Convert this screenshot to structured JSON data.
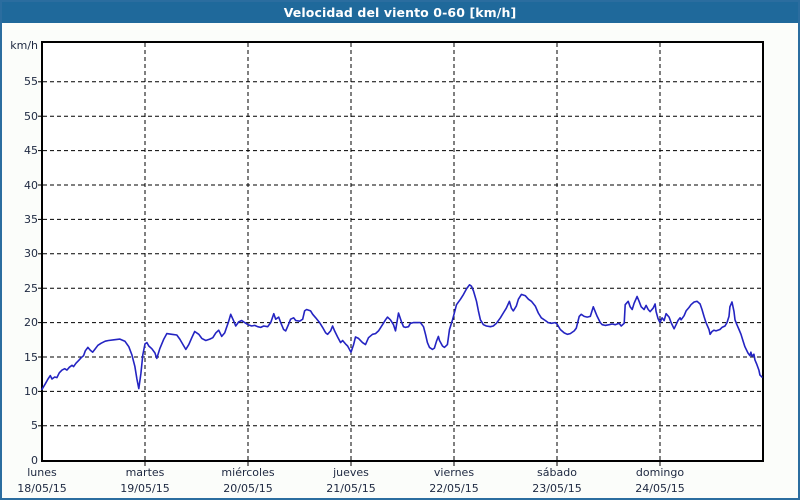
{
  "window": {
    "title": "Velocidad del viento 0-60 [km/h]"
  },
  "colors": {
    "titlebar_bg": "#1f699b",
    "titlebar_text": "#ffffff",
    "frame_border": "#2b6d9f",
    "page_bg": "#fbfdfa",
    "plot_bg": "#ffffff",
    "plot_border": "#000000",
    "gridline": "#000000",
    "axis_text": "#1d2840",
    "line": "#2424c2"
  },
  "chart_data": {
    "type": "line",
    "title": "Velocidad del viento 0-60 [km/h]",
    "ylabel": "km/h",
    "ylim": [
      0,
      60
    ],
    "yticks": [
      0,
      5,
      10,
      15,
      20,
      25,
      30,
      35,
      40,
      45,
      50,
      55
    ],
    "xlim": [
      0,
      7
    ],
    "x_unit": "days",
    "grid": "dashed horizontal and vertical",
    "legend": "none",
    "days": [
      {
        "name": "lunes",
        "date": "18/05/15"
      },
      {
        "name": "martes",
        "date": "19/05/15"
      },
      {
        "name": "miércoles",
        "date": "20/05/15"
      },
      {
        "name": "jueves",
        "date": "21/05/15"
      },
      {
        "name": "viernes",
        "date": "22/05/15"
      },
      {
        "name": "sábado",
        "date": "23/05/15"
      },
      {
        "name": "domingo",
        "date": "24/05/15"
      }
    ],
    "series": [
      {
        "name": "Velocidad del viento [km/h]",
        "color": "#2424c2",
        "points": [
          [
            0.0,
            10.3
          ],
          [
            0.032,
            11.1
          ],
          [
            0.058,
            11.8
          ],
          [
            0.081,
            12.3
          ],
          [
            0.097,
            11.8
          ],
          [
            0.123,
            12.1
          ],
          [
            0.145,
            12.0
          ],
          [
            0.168,
            12.7
          ],
          [
            0.194,
            13.1
          ],
          [
            0.22,
            13.3
          ],
          [
            0.242,
            13.1
          ],
          [
            0.265,
            13.5
          ],
          [
            0.291,
            13.8
          ],
          [
            0.307,
            13.6
          ],
          [
            0.33,
            14.1
          ],
          [
            0.356,
            14.5
          ],
          [
            0.381,
            14.9
          ],
          [
            0.404,
            15.2
          ],
          [
            0.42,
            15.9
          ],
          [
            0.446,
            16.4
          ],
          [
            0.468,
            16.0
          ],
          [
            0.491,
            15.7
          ],
          [
            0.517,
            16.2
          ],
          [
            0.543,
            16.7
          ],
          [
            0.575,
            17.0
          ],
          [
            0.614,
            17.3
          ],
          [
            0.646,
            17.4
          ],
          [
            0.698,
            17.5
          ],
          [
            0.756,
            17.6
          ],
          [
            0.805,
            17.3
          ],
          [
            0.843,
            16.5
          ],
          [
            0.873,
            15.3
          ],
          [
            0.902,
            13.6
          ],
          [
            0.921,
            11.8
          ],
          [
            0.94,
            10.4
          ],
          [
            0.96,
            12.6
          ],
          [
            0.979,
            15.3
          ],
          [
            1.0,
            16.9
          ],
          [
            1.018,
            17.1
          ],
          [
            1.037,
            16.6
          ],
          [
            1.066,
            16.2
          ],
          [
            1.096,
            15.6
          ],
          [
            1.115,
            14.8
          ],
          [
            1.144,
            16.2
          ],
          [
            1.183,
            17.6
          ],
          [
            1.212,
            18.4
          ],
          [
            1.26,
            18.3
          ],
          [
            1.309,
            18.2
          ],
          [
            1.338,
            17.6
          ],
          [
            1.377,
            16.6
          ],
          [
            1.396,
            16.1
          ],
          [
            1.425,
            16.8
          ],
          [
            1.454,
            17.8
          ],
          [
            1.483,
            18.7
          ],
          [
            1.522,
            18.3
          ],
          [
            1.551,
            17.7
          ],
          [
            1.59,
            17.4
          ],
          [
            1.629,
            17.6
          ],
          [
            1.658,
            17.8
          ],
          [
            1.687,
            18.5
          ],
          [
            1.716,
            18.9
          ],
          [
            1.745,
            18.0
          ],
          [
            1.774,
            18.5
          ],
          [
            1.813,
            20.2
          ],
          [
            1.832,
            21.2
          ],
          [
            1.862,
            20.2
          ],
          [
            1.881,
            19.5
          ],
          [
            1.91,
            20.1
          ],
          [
            1.939,
            20.3
          ],
          [
            1.968,
            20.0
          ],
          [
            2.0,
            19.7
          ],
          [
            2.036,
            19.5
          ],
          [
            2.065,
            19.6
          ],
          [
            2.094,
            19.4
          ],
          [
            2.123,
            19.3
          ],
          [
            2.152,
            19.5
          ],
          [
            2.191,
            19.4
          ],
          [
            2.22,
            20.0
          ],
          [
            2.25,
            21.3
          ],
          [
            2.269,
            20.5
          ],
          [
            2.298,
            20.8
          ],
          [
            2.317,
            20.0
          ],
          [
            2.346,
            19.0
          ],
          [
            2.366,
            18.8
          ],
          [
            2.395,
            19.8
          ],
          [
            2.414,
            20.5
          ],
          [
            2.443,
            20.7
          ],
          [
            2.463,
            20.3
          ],
          [
            2.501,
            20.2
          ],
          [
            2.531,
            20.5
          ],
          [
            2.55,
            21.7
          ],
          [
            2.569,
            21.9
          ],
          [
            2.608,
            21.7
          ],
          [
            2.628,
            21.2
          ],
          [
            2.657,
            20.7
          ],
          [
            2.695,
            20.0
          ],
          [
            2.724,
            19.3
          ],
          [
            2.754,
            18.5
          ],
          [
            2.773,
            18.3
          ],
          [
            2.802,
            18.8
          ],
          [
            2.821,
            19.5
          ],
          [
            2.841,
            18.8
          ],
          [
            2.87,
            17.9
          ],
          [
            2.899,
            17.1
          ],
          [
            2.918,
            17.4
          ],
          [
            2.947,
            16.9
          ],
          [
            2.967,
            16.6
          ],
          [
            3.0,
            15.7
          ],
          [
            3.025,
            16.8
          ],
          [
            3.044,
            17.9
          ],
          [
            3.073,
            17.7
          ],
          [
            3.112,
            17.1
          ],
          [
            3.141,
            16.8
          ],
          [
            3.17,
            17.8
          ],
          [
            3.209,
            18.3
          ],
          [
            3.238,
            18.4
          ],
          [
            3.267,
            18.8
          ],
          [
            3.306,
            19.7
          ],
          [
            3.335,
            20.4
          ],
          [
            3.354,
            20.8
          ],
          [
            3.383,
            20.4
          ],
          [
            3.413,
            19.7
          ],
          [
            3.432,
            18.8
          ],
          [
            3.461,
            21.4
          ],
          [
            3.49,
            20.1
          ],
          [
            3.51,
            19.4
          ],
          [
            3.529,
            19.3
          ],
          [
            3.558,
            19.4
          ],
          [
            3.577,
            19.9
          ],
          [
            3.606,
            20.0
          ],
          [
            3.645,
            20.0
          ],
          [
            3.674,
            20.0
          ],
          [
            3.704,
            19.4
          ],
          [
            3.723,
            18.3
          ],
          [
            3.742,
            17.1
          ],
          [
            3.762,
            16.4
          ],
          [
            3.791,
            16.1
          ],
          [
            3.81,
            16.3
          ],
          [
            3.83,
            17.3
          ],
          [
            3.849,
            18.0
          ],
          [
            3.859,
            17.4
          ],
          [
            3.888,
            16.6
          ],
          [
            3.907,
            16.4
          ],
          [
            3.936,
            16.8
          ],
          [
            3.956,
            19.0
          ],
          [
            3.985,
            20.4
          ],
          [
            4.0,
            21.2
          ],
          [
            4.024,
            22.6
          ],
          [
            4.063,
            23.4
          ],
          [
            4.092,
            24.1
          ],
          [
            4.121,
            24.9
          ],
          [
            4.15,
            25.5
          ],
          [
            4.169,
            25.3
          ],
          [
            4.189,
            24.6
          ],
          [
            4.218,
            23.1
          ],
          [
            4.237,
            21.7
          ],
          [
            4.256,
            20.4
          ],
          [
            4.285,
            19.7
          ],
          [
            4.315,
            19.5
          ],
          [
            4.353,
            19.4
          ],
          [
            4.382,
            19.5
          ],
          [
            4.412,
            19.9
          ],
          [
            4.45,
            20.7
          ],
          [
            4.479,
            21.4
          ],
          [
            4.508,
            22.1
          ],
          [
            4.538,
            23.1
          ],
          [
            4.557,
            22.1
          ],
          [
            4.576,
            21.7
          ],
          [
            4.605,
            22.4
          ],
          [
            4.625,
            23.4
          ],
          [
            4.654,
            24.1
          ],
          [
            4.693,
            23.9
          ],
          [
            4.722,
            23.4
          ],
          [
            4.751,
            23.1
          ],
          [
            4.789,
            22.4
          ],
          [
            4.818,
            21.4
          ],
          [
            4.848,
            20.7
          ],
          [
            4.886,
            20.3
          ],
          [
            4.915,
            20.0
          ],
          [
            4.945,
            19.9
          ],
          [
            4.983,
            20.0
          ],
          [
            5.0,
            19.8
          ],
          [
            5.032,
            19.0
          ],
          [
            5.07,
            18.5
          ],
          [
            5.1,
            18.3
          ],
          [
            5.129,
            18.4
          ],
          [
            5.167,
            18.8
          ],
          [
            5.187,
            19.2
          ],
          [
            5.216,
            20.9
          ],
          [
            5.235,
            21.2
          ],
          [
            5.264,
            20.9
          ],
          [
            5.293,
            20.8
          ],
          [
            5.323,
            20.9
          ],
          [
            5.352,
            22.3
          ],
          [
            5.371,
            21.6
          ],
          [
            5.39,
            20.9
          ],
          [
            5.42,
            20.0
          ],
          [
            5.439,
            19.7
          ],
          [
            5.468,
            19.6
          ],
          [
            5.507,
            19.7
          ],
          [
            5.536,
            19.8
          ],
          [
            5.565,
            19.7
          ],
          [
            5.603,
            19.9
          ],
          [
            5.623,
            19.5
          ],
          [
            5.652,
            19.9
          ],
          [
            5.662,
            22.6
          ],
          [
            5.691,
            23.1
          ],
          [
            5.71,
            22.3
          ],
          [
            5.73,
            21.9
          ],
          [
            5.749,
            22.8
          ],
          [
            5.778,
            23.8
          ],
          [
            5.797,
            23.1
          ],
          [
            5.817,
            22.3
          ],
          [
            5.846,
            21.9
          ],
          [
            5.865,
            22.5
          ],
          [
            5.885,
            21.9
          ],
          [
            5.904,
            21.6
          ],
          [
            5.933,
            22.1
          ],
          [
            5.952,
            22.7
          ],
          [
            5.962,
            21.6
          ],
          [
            5.981,
            20.6
          ],
          [
            6.0,
            20.0
          ],
          [
            6.02,
            20.7
          ],
          [
            6.04,
            20.3
          ],
          [
            6.059,
            21.3
          ],
          [
            6.088,
            20.8
          ],
          [
            6.108,
            20.0
          ],
          [
            6.137,
            19.1
          ],
          [
            6.156,
            19.7
          ],
          [
            6.175,
            20.3
          ],
          [
            6.195,
            20.7
          ],
          [
            6.205,
            20.4
          ],
          [
            6.234,
            21.0
          ],
          [
            6.253,
            21.7
          ],
          [
            6.282,
            22.2
          ],
          [
            6.301,
            22.6
          ],
          [
            6.331,
            23.0
          ],
          [
            6.36,
            23.1
          ],
          [
            6.389,
            22.7
          ],
          [
            6.408,
            21.9
          ],
          [
            6.427,
            20.9
          ],
          [
            6.447,
            20.0
          ],
          [
            6.476,
            19.0
          ],
          [
            6.486,
            18.3
          ],
          [
            6.505,
            18.7
          ],
          [
            6.524,
            18.9
          ],
          [
            6.544,
            18.8
          ],
          [
            6.582,
            19.0
          ],
          [
            6.602,
            19.3
          ],
          [
            6.631,
            19.5
          ],
          [
            6.65,
            20.0
          ],
          [
            6.67,
            20.9
          ],
          [
            6.679,
            22.3
          ],
          [
            6.699,
            23.0
          ],
          [
            6.718,
            21.6
          ],
          [
            6.728,
            20.4
          ],
          [
            6.747,
            19.7
          ],
          [
            6.767,
            19.0
          ],
          [
            6.786,
            18.3
          ],
          [
            6.805,
            17.4
          ],
          [
            6.824,
            16.5
          ],
          [
            6.853,
            15.6
          ],
          [
            6.873,
            15.2
          ],
          [
            6.883,
            15.7
          ],
          [
            6.892,
            15.1
          ],
          [
            6.912,
            15.4
          ],
          [
            6.921,
            14.6
          ],
          [
            6.941,
            13.9
          ],
          [
            6.96,
            13.1
          ],
          [
            6.97,
            12.4
          ],
          [
            6.989,
            12.1
          ]
        ]
      }
    ]
  }
}
